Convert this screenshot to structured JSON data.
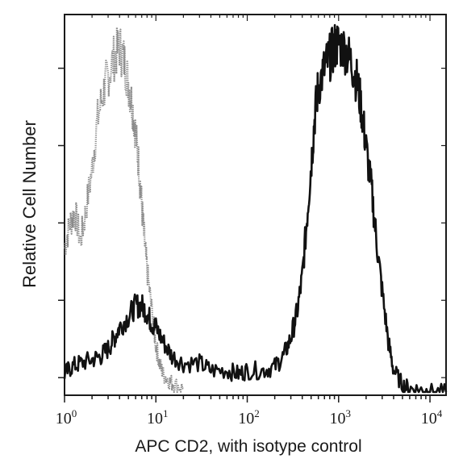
{
  "chart_data": {
    "type": "line",
    "title": "",
    "xlabel": "APC CD2, with isotype control",
    "ylabel": "Relative Cell Number",
    "x_scale": "log",
    "xlim": [
      1,
      15000
    ],
    "ylim": [
      0,
      1
    ],
    "grid": false,
    "legend": "none",
    "x_ticks": [
      {
        "value": 1,
        "base": "10",
        "exp": "0"
      },
      {
        "value": 10,
        "base": "10",
        "exp": "1"
      },
      {
        "value": 100,
        "base": "10",
        "exp": "2"
      },
      {
        "value": 1000,
        "base": "10",
        "exp": "3"
      },
      {
        "value": 10000,
        "base": "10",
        "exp": "4"
      }
    ],
    "series": [
      {
        "color": "#8a8a8a",
        "style": "dotted",
        "x": [
          1.0,
          1.15,
          1.3,
          1.5,
          1.7,
          2.0,
          2.3,
          2.7,
          3.0,
          3.5,
          4.0,
          4.5,
          5.0,
          5.5,
          6.0,
          6.5,
          7.0,
          7.5,
          8.0,
          9.0,
          10.0,
          11.0,
          12.0,
          14.0,
          16.0,
          20.0
        ],
        "y": [
          0.4,
          0.47,
          0.5,
          0.42,
          0.5,
          0.62,
          0.76,
          0.84,
          0.88,
          0.93,
          0.96,
          0.92,
          0.86,
          0.8,
          0.72,
          0.63,
          0.52,
          0.42,
          0.34,
          0.23,
          0.13,
          0.08,
          0.05,
          0.03,
          0.02,
          0.01
        ]
      },
      {
        "color": "#111111",
        "style": "solid",
        "x": [
          1.0,
          1.2,
          1.5,
          2.0,
          2.5,
          3.0,
          3.5,
          4.0,
          5.0,
          6.0,
          7.0,
          8.0,
          9.0,
          10.0,
          12.0,
          15.0,
          20.0,
          30.0,
          40.0,
          60.0,
          80.0,
          100.0,
          150.0,
          200.0,
          250.0,
          300.0,
          350.0,
          400.0,
          450.0,
          500.0,
          550.0,
          600.0,
          700.0,
          800.0,
          900.0,
          1000.0,
          1200.0,
          1400.0,
          1600.0,
          1800.0,
          2000.0,
          2300.0,
          2600.0,
          3000.0,
          3500.0,
          4000.0,
          5000.0,
          6000.0,
          8000.0,
          10000.0,
          15000.0
        ],
        "y": [
          0.05,
          0.07,
          0.08,
          0.09,
          0.1,
          0.12,
          0.15,
          0.18,
          0.21,
          0.24,
          0.24,
          0.22,
          0.19,
          0.18,
          0.14,
          0.1,
          0.08,
          0.08,
          0.06,
          0.06,
          0.05,
          0.06,
          0.06,
          0.07,
          0.1,
          0.15,
          0.22,
          0.32,
          0.48,
          0.63,
          0.77,
          0.85,
          0.9,
          0.93,
          0.96,
          0.97,
          0.95,
          0.91,
          0.86,
          0.78,
          0.68,
          0.56,
          0.42,
          0.28,
          0.14,
          0.06,
          0.02,
          0.01,
          0.005,
          0.002,
          0.0
        ]
      }
    ]
  }
}
